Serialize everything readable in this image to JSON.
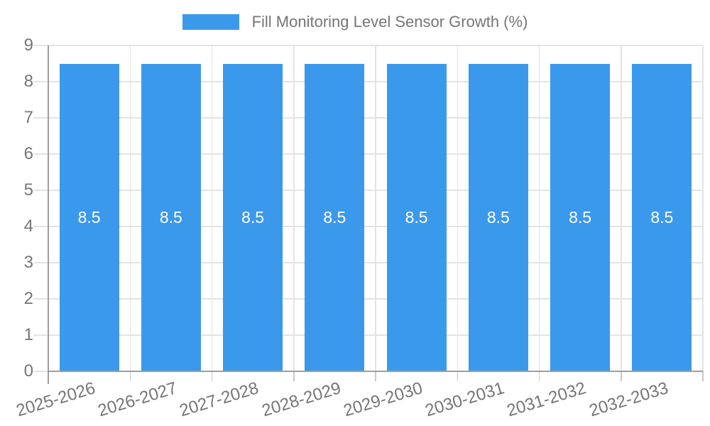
{
  "chart_data": {
    "type": "bar",
    "title": "Fill Monitoring Level Sensor Growth (%)",
    "legend": {
      "position": "top",
      "label": "Fill Monitoring Level Sensor Growth (%)"
    },
    "categories": [
      "2025-2026",
      "2026-2027",
      "2027-2028",
      "2028-2029",
      "2029-2030",
      "2030-2031",
      "2031-2032",
      "2032-2033"
    ],
    "series": [
      {
        "name": "Fill Monitoring Level Sensor Growth (%)",
        "values": [
          8.5,
          8.5,
          8.5,
          8.5,
          8.5,
          8.5,
          8.5,
          8.5
        ],
        "value_labels": [
          "8.5",
          "8.5",
          "8.5",
          "8.5",
          "8.5",
          "8.5",
          "8.5",
          "8.5"
        ]
      }
    ],
    "xlabel": "",
    "ylabel": "",
    "ylim": [
      0,
      9
    ],
    "yticks": [
      0,
      1,
      2,
      3,
      4,
      5,
      6,
      7,
      8,
      9
    ],
    "grid": true,
    "colors": {
      "bar": "#3B99EC",
      "value_label": "#FFFFFF",
      "axis_text": "#757575",
      "axis_line": "#9E9E9E",
      "gridline": "#E3E3E3",
      "boundary_tick": "#C9C9C9",
      "background": "#FFFFFF"
    }
  }
}
